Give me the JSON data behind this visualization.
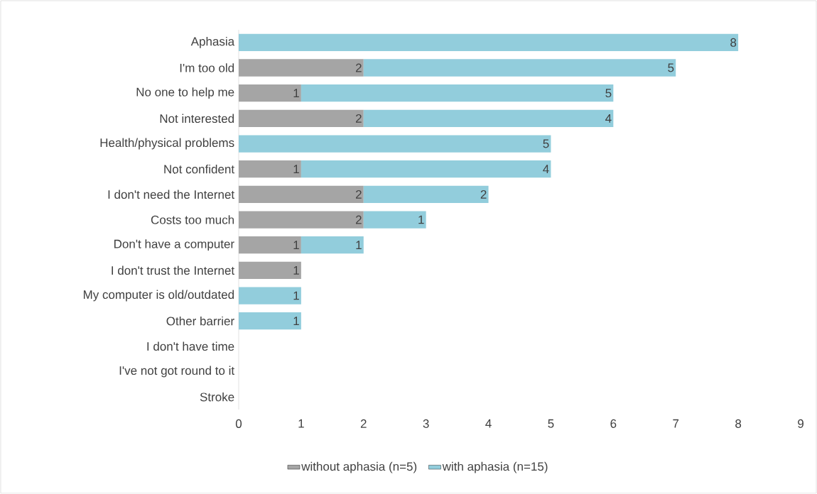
{
  "chart_data": {
    "type": "bar",
    "orientation": "horizontal",
    "stacked": true,
    "data_labels": true,
    "legend": "bottom",
    "categories": [
      "Aphasia",
      "I'm too old",
      "No one to help me",
      "Not interested",
      "Health/physical problems",
      "Not confident",
      "I don't need the Internet",
      "Costs too much",
      "Don't have a computer",
      "I don't trust the Internet",
      "My computer is old/outdated",
      "Other barrier",
      "I don't have time",
      "I've not got round to it",
      "Stroke"
    ],
    "series": [
      {
        "name": "without aphasia (n=5)",
        "color": "#a5a5a5",
        "values": [
          null,
          2,
          1,
          2,
          null,
          1,
          2,
          2,
          1,
          1,
          null,
          null,
          null,
          null,
          null
        ]
      },
      {
        "name": "with aphasia (n=15)",
        "color": "#92cddc",
        "values": [
          8,
          5,
          5,
          4,
          5,
          4,
          2,
          1,
          1,
          null,
          1,
          1,
          null,
          null,
          null
        ]
      }
    ],
    "xlim": [
      0,
      9
    ],
    "xticks": [
      0,
      1,
      2,
      3,
      4,
      5,
      6,
      7,
      8,
      9
    ]
  }
}
